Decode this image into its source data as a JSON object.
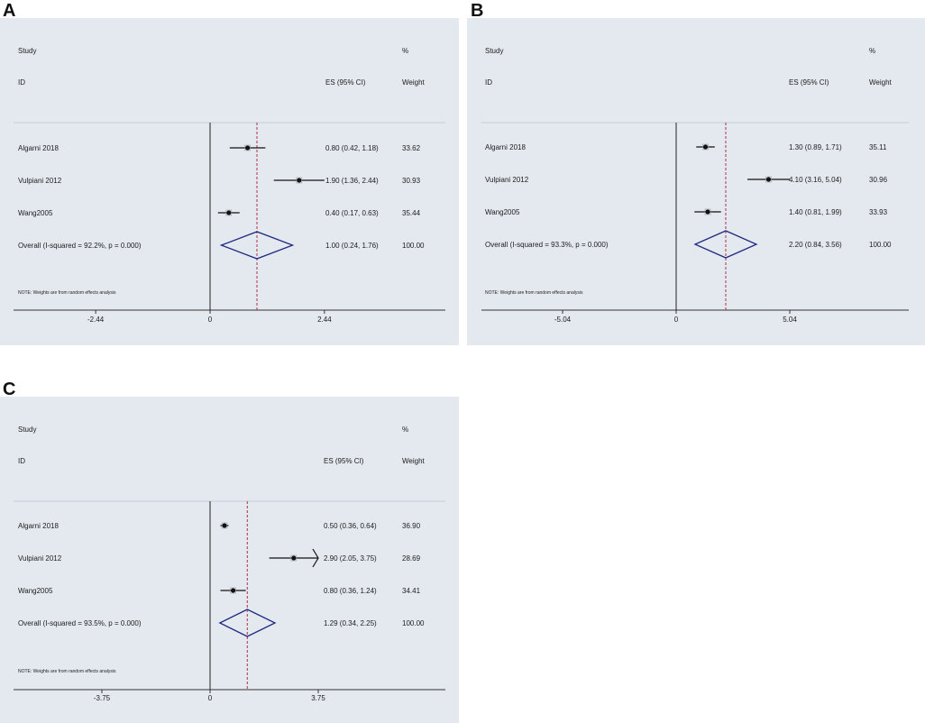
{
  "panels": [
    {
      "label": "A",
      "chart_data": {
        "type": "forest",
        "header": {
          "study": "Study",
          "id": "ID",
          "es": "ES (95% CI)",
          "pct": "%",
          "weight": "Weight"
        },
        "studies": [
          {
            "name": "Algarni 2018",
            "es": 0.8,
            "lo": 0.42,
            "hi": 1.18,
            "es_text": "0.80 (0.42, 1.18)",
            "weight": "33.62"
          },
          {
            "name": "Vulpiani 2012",
            "es": 1.9,
            "lo": 1.36,
            "hi": 2.44,
            "es_text": "1.90 (1.36, 2.44)",
            "weight": "30.93"
          },
          {
            "name": "Wang2005",
            "es": 0.4,
            "lo": 0.17,
            "hi": 0.63,
            "es_text": "0.40 (0.17, 0.63)",
            "weight": "35.44"
          }
        ],
        "overall": {
          "name": "Overall  (I-squared = 92.2%, p = 0.000)",
          "es": 1.0,
          "lo": 0.24,
          "hi": 1.76,
          "es_text": "1.00 (0.24, 1.76)",
          "weight": "100.00"
        },
        "note": "NOTE: Weights are from random effects analysis",
        "xticks": [
          "-2.44",
          "0",
          "2.44"
        ],
        "xlim": [
          -4.2,
          4.2
        ],
        "colors": {
          "diamond": "#1f2a80",
          "ref": "#b0304a"
        }
      }
    },
    {
      "label": "B",
      "chart_data": {
        "type": "forest",
        "header": {
          "study": "Study",
          "id": "ID",
          "es": "ES (95% CI)",
          "pct": "%",
          "weight": "Weight"
        },
        "studies": [
          {
            "name": "Algarni 2018",
            "es": 1.3,
            "lo": 0.89,
            "hi": 1.71,
            "es_text": "1.30 (0.89, 1.71)",
            "weight": "35.11"
          },
          {
            "name": "Vulpiani 2012",
            "es": 4.1,
            "lo": 3.16,
            "hi": 5.04,
            "es_text": "4.10 (3.16, 5.04)",
            "weight": "30.96"
          },
          {
            "name": "Wang2005",
            "es": 1.4,
            "lo": 0.81,
            "hi": 1.99,
            "es_text": "1.40 (0.81, 1.99)",
            "weight": "33.93"
          }
        ],
        "overall": {
          "name": "Overall  (I-squared = 93.3%, p = 0.000)",
          "es": 2.2,
          "lo": 0.84,
          "hi": 3.56,
          "es_text": "2.20 (0.84, 3.56)",
          "weight": "100.00"
        },
        "note": "NOTE: Weights are from random effects analysis",
        "xticks": [
          "-5.04",
          "0",
          "5.04"
        ],
        "xlim": [
          -8.7,
          8.7
        ],
        "colors": {
          "diamond": "#1f2a80",
          "ref": "#b0304a"
        }
      }
    },
    {
      "label": "C",
      "chart_data": {
        "type": "forest",
        "header": {
          "study": "Study",
          "id": "ID",
          "es": "ES (95% CI)",
          "pct": "%",
          "weight": "Weight"
        },
        "studies": [
          {
            "name": "Algarni 2018",
            "es": 0.5,
            "lo": 0.36,
            "hi": 0.64,
            "es_text": "0.50 (0.36, 0.64)",
            "weight": "36.90"
          },
          {
            "name": "Vulpiani 2012",
            "es": 2.9,
            "lo": 2.05,
            "hi": 3.75,
            "es_text": "2.90 (2.05, 3.75)",
            "weight": "28.69",
            "arrow": true
          },
          {
            "name": "Wang2005",
            "es": 0.8,
            "lo": 0.36,
            "hi": 1.24,
            "es_text": "0.80 (0.36, 1.24)",
            "weight": "34.41"
          }
        ],
        "overall": {
          "name": "Overall  (I-squared = 93.5%, p = 0.000)",
          "es": 1.29,
          "lo": 0.34,
          "hi": 2.25,
          "es_text": "1.29 (0.34, 2.25)",
          "weight": "100.00"
        },
        "note": "NOTE: Weights are from random effects analysis",
        "xticks": [
          "-3.75",
          "0",
          "3.75"
        ],
        "xlim": [
          -6.4,
          4.3
        ],
        "colors": {
          "diamond": "#1f2a80",
          "ref": "#b0304a"
        }
      }
    }
  ]
}
